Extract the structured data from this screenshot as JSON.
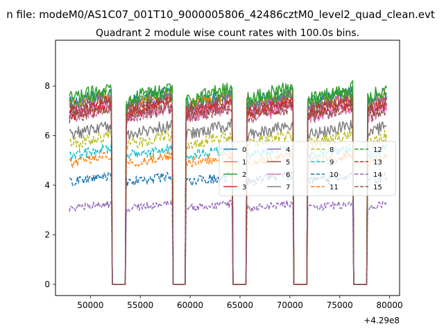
{
  "figure_title": "n file: modeM0/AS1C07_001T10_9000005806_42486cztM0_level2_quad_clean.evt",
  "chart_data": {
    "type": "line",
    "title": "Quadrant 2 module wise count rates with 100.0s bins.",
    "xlabel": "",
    "ylabel": "",
    "x_offset_label": "+4.29e8",
    "xlim": [
      46500,
      81000
    ],
    "ylim": [
      -0.45,
      9.85
    ],
    "xticks": [
      50000,
      55000,
      60000,
      65000,
      70000,
      75000,
      80000
    ],
    "xtick_labels": [
      "50000",
      "55000",
      "60000",
      "65000",
      "70000",
      "75000",
      "80000"
    ],
    "yticks": [
      0,
      2,
      4,
      6,
      8
    ],
    "ytick_labels": [
      "0",
      "2",
      "4",
      "6",
      "8"
    ],
    "legend_location": "center-right",
    "legend_columns": 4,
    "segments": [
      {
        "start": 47900,
        "end": 52100,
        "ramp_peak": 0.97
      },
      {
        "start": 53600,
        "end": 58200,
        "ramp_peak": 1.0
      },
      {
        "start": 59600,
        "end": 64200,
        "ramp_peak": 1.0
      },
      {
        "start": 65700,
        "end": 70300,
        "ramp_peak": 1.0
      },
      {
        "start": 71800,
        "end": 76300,
        "ramp_peak": 1.0
      },
      {
        "start": 77800,
        "end": 79700,
        "ramp_peak": 0.98
      }
    ],
    "gap_level": 0,
    "series": [
      {
        "name": "0",
        "color": "#1f77b4",
        "dash": "solid",
        "level": 7.6,
        "noise": 0.28
      },
      {
        "name": "1",
        "color": "#ff7f0e",
        "dash": "solid",
        "level": 7.5,
        "noise": 0.25
      },
      {
        "name": "2",
        "color": "#2ca02c",
        "dash": "solid",
        "level": 7.8,
        "noise": 0.28
      },
      {
        "name": "3",
        "color": "#d62728",
        "dash": "solid",
        "level": 7.1,
        "noise": 0.25
      },
      {
        "name": "4",
        "color": "#9467bd",
        "dash": "solid",
        "level": 7.4,
        "noise": 0.25
      },
      {
        "name": "5",
        "color": "#8c564b",
        "dash": "solid",
        "level": 7.3,
        "noise": 0.25
      },
      {
        "name": "6",
        "color": "#e377c2",
        "dash": "solid",
        "level": 7.0,
        "noise": 0.25
      },
      {
        "name": "7",
        "color": "#7f7f7f",
        "dash": "solid",
        "level": 6.3,
        "noise": 0.25
      },
      {
        "name": "8",
        "color": "#bcbd22",
        "dash": "dashed",
        "level": 5.9,
        "noise": 0.25
      },
      {
        "name": "9",
        "color": "#17becf",
        "dash": "dashed",
        "level": 5.4,
        "noise": 0.2
      },
      {
        "name": "10",
        "color": "#1f77b4",
        "dash": "dashed",
        "level": 4.3,
        "noise": 0.2
      },
      {
        "name": "11",
        "color": "#ff7f0e",
        "dash": "dashed",
        "level": 5.1,
        "noise": 0.2
      },
      {
        "name": "12",
        "color": "#2ca02c",
        "dash": "dashed",
        "level": 7.6,
        "noise": 0.25
      },
      {
        "name": "13",
        "color": "#d62728",
        "dash": "dashed",
        "level": 7.2,
        "noise": 0.25
      },
      {
        "name": "14",
        "color": "#9467bd",
        "dash": "dashed",
        "level": 3.2,
        "noise": 0.15
      },
      {
        "name": "15",
        "color": "#8c564b",
        "dash": "dashed",
        "level": 7.0,
        "noise": 0.25
      }
    ]
  }
}
